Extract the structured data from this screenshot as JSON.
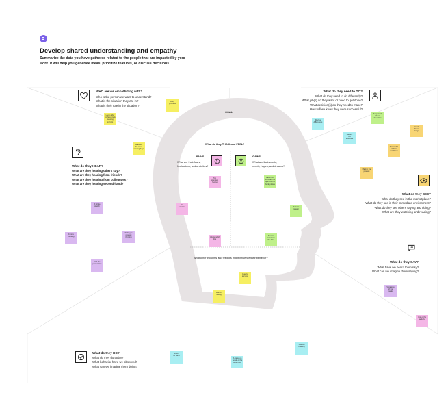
{
  "header": {
    "title": "Develop shared understanding and empathy",
    "subtitle": "Summarize the data you have gathered related to the people that are impacted by your work. It will help you generate ideas, prioritize features, or discuss decisions."
  },
  "goal_label": "GOAL",
  "sections": {
    "who": {
      "title": "WHO are we empathizing with?",
      "lines": [
        "Who is the person we want to understand?",
        "What is the situation they are in?",
        "What is their role in the situation?"
      ]
    },
    "do_goal": {
      "title": "What do they need to DO?",
      "lines": [
        "What do they need to do differently?",
        "What job(s) do they want or need to get done?",
        "What decision(s) do they need to make?",
        "How will we know they were successful?"
      ]
    },
    "hear": {
      "title": "What do they HEAR?",
      "lines": [
        "What are they hearing others say?",
        "What are they hearing from friends?",
        "What are they hearing from colleagues?",
        "What are they hearing second-hand?"
      ]
    },
    "see": {
      "title": "What do they SEE?",
      "lines": [
        "What do they see in the marketplace?",
        "What do they see in their immediate environment?",
        "What do they see others saying and doing?",
        "What are they watching and reading?"
      ]
    },
    "say": {
      "title": "What do they SAY?",
      "lines": [
        "What have we heard them say?",
        "What can we imagine them saying?"
      ]
    },
    "do": {
      "title": "What do they DO?",
      "lines": [
        "What do they do today?",
        "What behavior have we observed?",
        "What can we imagine them doing?"
      ]
    },
    "think": {
      "title": "What do they THINK and FEEL?",
      "pains_title": "PAINS",
      "pains_lines": [
        "What are their fears,",
        "frustrations, and anxieties?"
      ],
      "gains_title": "GAINS",
      "gains_lines": [
        "What are their wants,",
        "needs, hopes, and dreams?"
      ],
      "other": "What other thoughts and feelings might influence their behavior?"
    }
  },
  "icons": {
    "who": "heart-icon",
    "do_goal": "person-icon",
    "hear": "ear-icon",
    "see": "eye-icon",
    "say": "speech-bubble-icon",
    "do": "check-icon",
    "pains": "sad-face-icon",
    "gains": "happy-face-icon",
    "header": "target-icon"
  },
  "colors": {
    "head_silhouette": "#e7e3e4",
    "accent": "#7b61e8",
    "sticky_yellow": "#f6ef62",
    "sticky_purple": "#d9b8f0",
    "sticky_blue": "#a8eef2",
    "sticky_green": "#bff08a",
    "sticky_orange": "#f8d574",
    "sticky_pink": "#f4b6e6"
  },
  "stickies": [
    {
      "c": "y",
      "t": "Busy\nproducts"
    },
    {
      "c": "y",
      "t": "Looks after\nprofessionals\nfocusing\non help"
    },
    {
      "c": "y",
      "t": "Available\nfor some\nreading bays"
    },
    {
      "c": "p",
      "t": "A whole\nstretch"
    },
    {
      "c": "p",
      "t": "Fenn's\nthinking"
    },
    {
      "c": "p",
      "t": "Putting in\nproduct\nthinking"
    },
    {
      "c": "p",
      "t": "Visit the\nperspective"
    },
    {
      "c": "b",
      "t": "Vision\nfor Bank"
    },
    {
      "c": "b",
      "t": "Review\ndifferences"
    },
    {
      "c": "b",
      "t": "Launch\nthe\ntimelines"
    },
    {
      "c": "g",
      "t": "Keep track\nof the\nchecklists"
    },
    {
      "c": "o",
      "t": "Boards\nthat's\ndesign"
    },
    {
      "c": "o",
      "t": "The model\nof their\nconditions"
    },
    {
      "c": "o",
      "t": "Making the\nproduct"
    },
    {
      "c": "pk",
      "t": "Too\nstandard\nfeeling"
    },
    {
      "c": "pk",
      "t": "Re-\ndefinition"
    },
    {
      "c": "pk",
      "t": "Weekend of\nbills"
    },
    {
      "c": "g",
      "t": "Label and\nconsider the\nopinions the\nbank places"
    },
    {
      "c": "g",
      "t": "Service\nmaster"
    },
    {
      "c": "g",
      "t": "Secure\nand share\nthe data"
    },
    {
      "c": "y",
      "t": "Quality\nservice"
    },
    {
      "c": "y",
      "t": "Earlier\nfinding"
    },
    {
      "c": "p",
      "t": "Variations\nof the\nbanks"
    },
    {
      "c": "pk",
      "t": "Visit of the\nactivity"
    },
    {
      "c": "b",
      "t": "Visit the\nbuilding"
    },
    {
      "c": "b",
      "t": "A frame on\nbehalf of the\nbank roles"
    },
    {
      "c": "b",
      "t": "Background\nideas"
    }
  ]
}
